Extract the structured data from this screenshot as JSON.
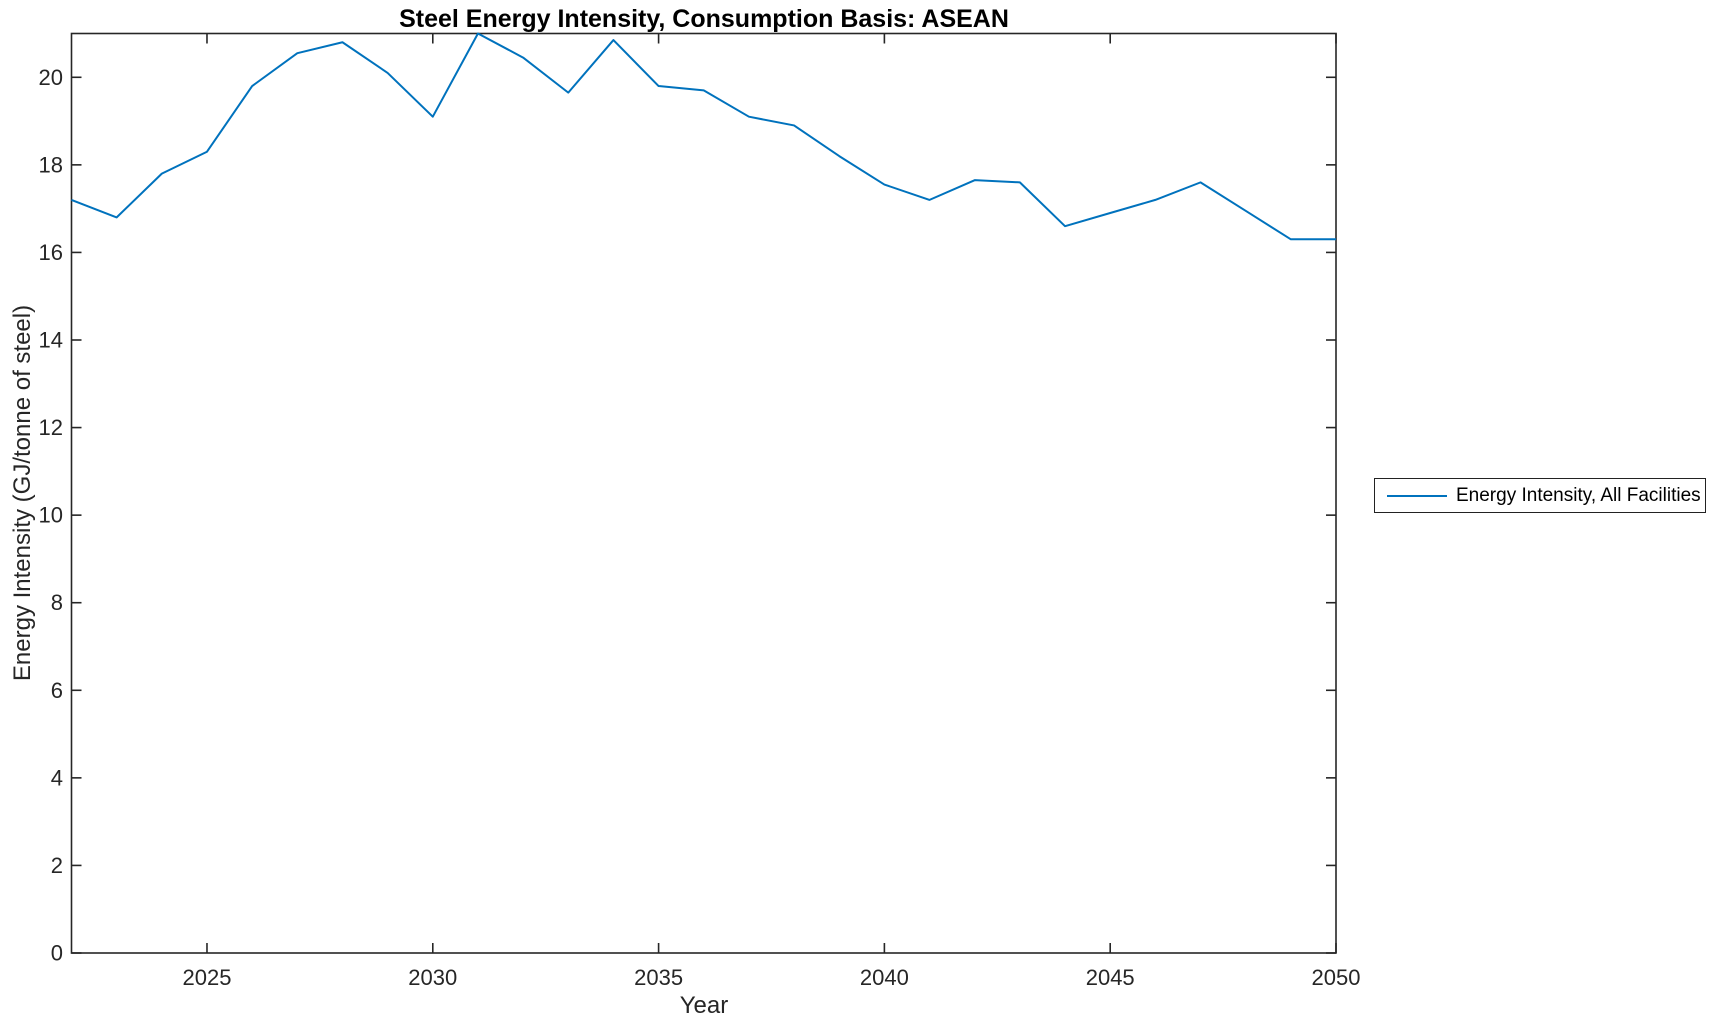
{
  "chart_data": {
    "type": "line",
    "title": "Steel Energy Intensity, Consumption Basis: ASEAN",
    "xlabel": "Year",
    "ylabel": "Energy Intensity (GJ/tonne of steel)",
    "xlim": [
      2022,
      2050
    ],
    "ylim": [
      0,
      21
    ],
    "x_ticks": [
      2025,
      2030,
      2035,
      2040,
      2045,
      2050
    ],
    "y_ticks": [
      0,
      2,
      4,
      6,
      8,
      10,
      12,
      14,
      16,
      18,
      20
    ],
    "grid": false,
    "legend_position": "outside-right-middle",
    "line_color": "#0072BD",
    "axis_color": "#262626",
    "x": [
      2022,
      2023,
      2024,
      2025,
      2026,
      2027,
      2028,
      2029,
      2030,
      2031,
      2032,
      2033,
      2034,
      2035,
      2036,
      2037,
      2038,
      2039,
      2040,
      2041,
      2042,
      2043,
      2044,
      2045,
      2046,
      2047,
      2048,
      2049,
      2050
    ],
    "series": [
      {
        "name": "Energy Intensity, All Facilities",
        "values": [
          17.2,
          16.8,
          17.8,
          18.3,
          19.8,
          20.55,
          20.8,
          20.1,
          19.1,
          21.0,
          20.45,
          19.65,
          20.85,
          19.8,
          19.7,
          19.1,
          18.9,
          18.2,
          17.55,
          17.2,
          17.65,
          17.6,
          16.6,
          16.9,
          17.2,
          17.6,
          16.95,
          16.3,
          16.3
        ]
      }
    ]
  }
}
